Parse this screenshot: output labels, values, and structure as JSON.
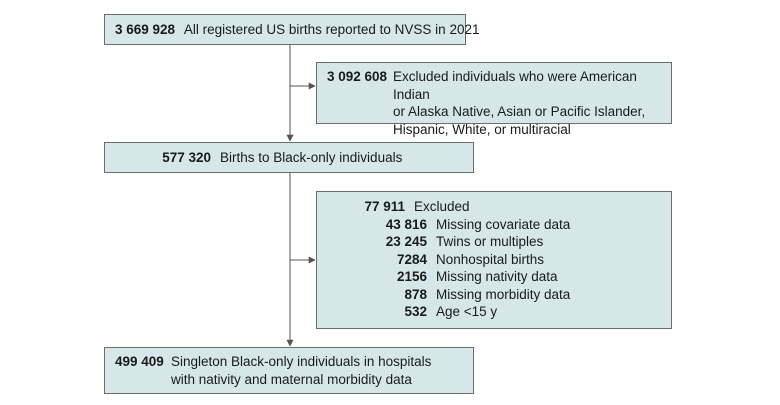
{
  "boxes": {
    "total": {
      "count": "3 669 928",
      "label": "All registered US births reported to NVSS in 2021"
    },
    "excluded_race": {
      "count": "3 092 608",
      "lines": [
        "Excluded individuals who were American Indian",
        "or Alaska Native, Asian or Pacific Islander,",
        "Hispanic, White, or multiracial"
      ]
    },
    "black_only": {
      "count": "577 320",
      "label": "Births to Black-only individuals"
    },
    "excluded_other": {
      "rows": [
        {
          "count": "77 911",
          "label": "Excluded"
        },
        {
          "count": "43 816",
          "label": "Missing covariate data"
        },
        {
          "count": "23 245",
          "label": "Twins or multiples"
        },
        {
          "count": "7284",
          "label": "Nonhospital births"
        },
        {
          "count": "2156",
          "label": "Missing nativity data"
        },
        {
          "count": "878",
          "label": "Missing morbidity data"
        },
        {
          "count": "532",
          "label": "Age <15 y"
        }
      ]
    },
    "final": {
      "count": "499 409",
      "lines": [
        "Singleton Black-only individuals in hospitals",
        "with nativity and maternal morbidity data"
      ]
    }
  },
  "colors": {
    "box_fill": "#d6e7e9",
    "box_border": "#6d6d6d",
    "line": "#555555"
  }
}
